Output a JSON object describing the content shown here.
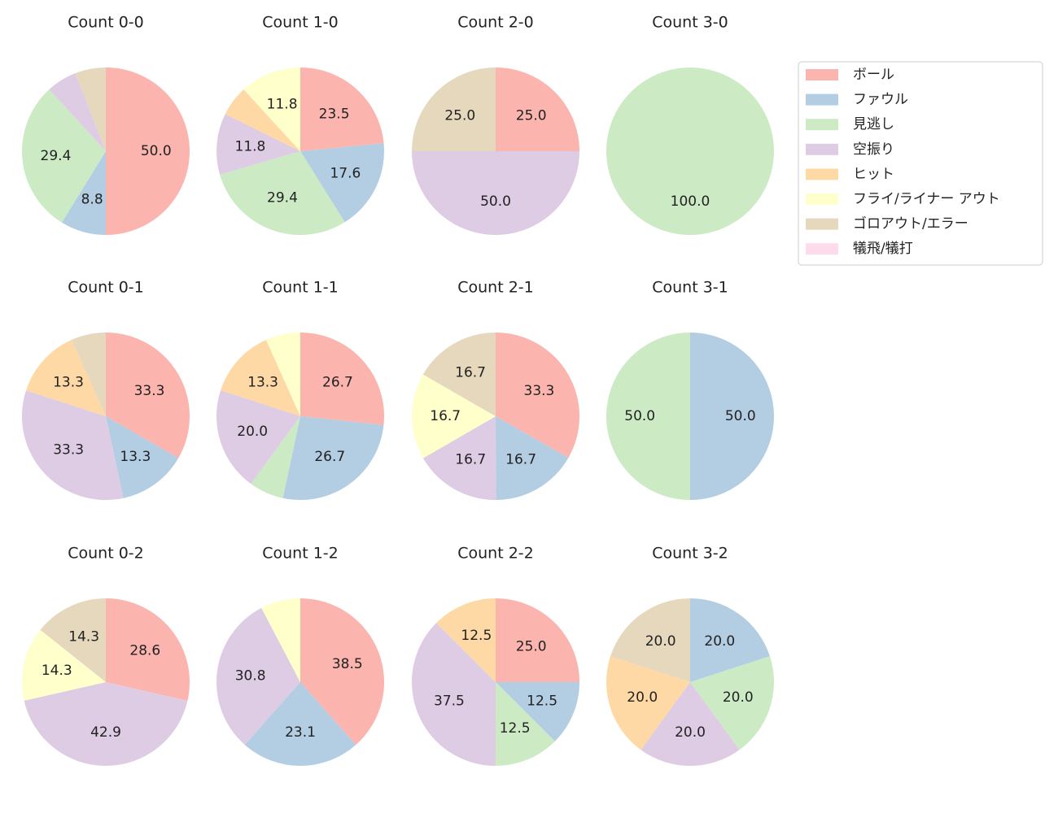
{
  "legend": {
    "labels": [
      "ボール",
      "ファウル",
      "見逃し",
      "空振り",
      "ヒット",
      "フライ/ライナー アウト",
      "ゴロアウト/エラー",
      "犠飛/犠打"
    ],
    "colors": [
      "#fbb4ae",
      "#b3cde3",
      "#ccebc5",
      "#decbe4",
      "#fed9a6",
      "#ffffcc",
      "#e5d8bd",
      "#fddaec"
    ]
  },
  "chart_data": [
    {
      "type": "pie",
      "title": "Count 0-0",
      "values": [
        50.0,
        8.8,
        29.4,
        5.9,
        0,
        0,
        5.9,
        0
      ],
      "value_labels": [
        "50.0",
        "8.8",
        "29.4",
        null,
        null,
        null,
        null,
        null
      ]
    },
    {
      "type": "pie",
      "title": "Count 1-0",
      "values": [
        23.5,
        17.6,
        29.4,
        11.8,
        5.9,
        11.8,
        0,
        0
      ],
      "value_labels": [
        "23.5",
        "17.6",
        "29.4",
        "11.8",
        null,
        "11.8",
        null,
        null
      ]
    },
    {
      "type": "pie",
      "title": "Count 2-0",
      "values": [
        25.0,
        0,
        0,
        50.0,
        0,
        0,
        25.0,
        0
      ],
      "value_labels": [
        "25.0",
        null,
        null,
        "50.0",
        null,
        null,
        "25.0",
        null
      ]
    },
    {
      "type": "pie",
      "title": "Count 3-0",
      "values": [
        0,
        0,
        100.0,
        0,
        0,
        0,
        0,
        0
      ],
      "value_labels": [
        null,
        null,
        "100.0",
        null,
        null,
        null,
        null,
        null
      ]
    },
    {
      "type": "pie",
      "title": "Count 0-1",
      "values": [
        33.3,
        13.3,
        0,
        33.3,
        13.3,
        0,
        6.7,
        0
      ],
      "value_labels": [
        "33.3",
        "13.3",
        null,
        "33.3",
        "13.3",
        null,
        null,
        null
      ]
    },
    {
      "type": "pie",
      "title": "Count 1-1",
      "values": [
        26.7,
        26.7,
        6.7,
        20.0,
        13.3,
        6.7,
        0,
        0
      ],
      "value_labels": [
        "26.7",
        "26.7",
        null,
        "20.0",
        "13.3",
        null,
        null,
        null
      ]
    },
    {
      "type": "pie",
      "title": "Count 2-1",
      "values": [
        33.3,
        16.7,
        0,
        16.7,
        0,
        16.7,
        16.7,
        0
      ],
      "value_labels": [
        "33.3",
        "16.7",
        null,
        "16.7",
        null,
        "16.7",
        "16.7",
        null
      ]
    },
    {
      "type": "pie",
      "title": "Count 3-1",
      "values": [
        0,
        50.0,
        50.0,
        0,
        0,
        0,
        0,
        0
      ],
      "value_labels": [
        null,
        "50.0",
        "50.0",
        null,
        null,
        null,
        null,
        null
      ]
    },
    {
      "type": "pie",
      "title": "Count 0-2",
      "values": [
        28.6,
        0,
        0,
        42.9,
        0,
        14.3,
        14.3,
        0
      ],
      "value_labels": [
        "28.6",
        null,
        null,
        "42.9",
        null,
        "14.3",
        "14.3",
        null
      ]
    },
    {
      "type": "pie",
      "title": "Count 1-2",
      "values": [
        38.5,
        23.1,
        0,
        30.8,
        0,
        7.7,
        0,
        0
      ],
      "value_labels": [
        "38.5",
        "23.1",
        null,
        "30.8",
        null,
        null,
        null,
        null
      ]
    },
    {
      "type": "pie",
      "title": "Count 2-2",
      "values": [
        25.0,
        12.5,
        12.5,
        37.5,
        12.5,
        0,
        0,
        0
      ],
      "value_labels": [
        "25.0",
        "12.5",
        "12.5",
        "37.5",
        "12.5",
        null,
        null,
        null
      ]
    },
    {
      "type": "pie",
      "title": "Count 3-2",
      "values": [
        0,
        20.0,
        20.0,
        20.0,
        20.0,
        0,
        20.0,
        0
      ],
      "value_labels": [
        null,
        "20.0",
        "20.0",
        "20.0",
        "20.0",
        null,
        "20.0",
        null
      ]
    }
  ]
}
